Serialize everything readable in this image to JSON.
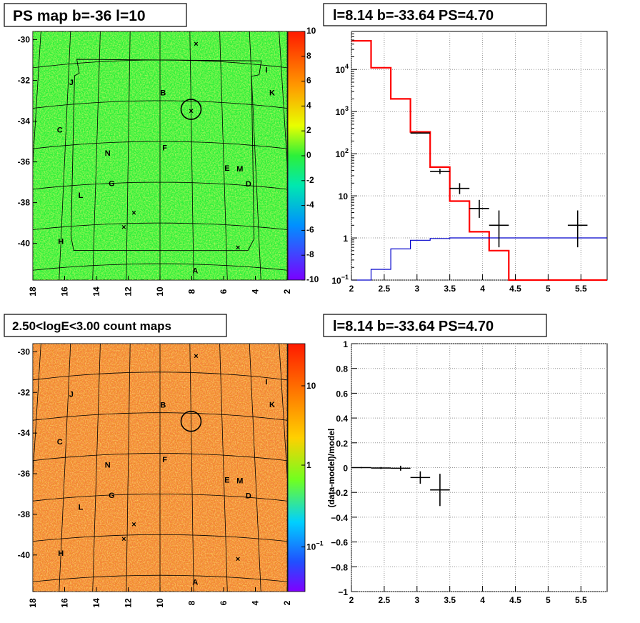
{
  "chart_data": [
    {
      "id": "ps-map",
      "type": "heatmap",
      "title": "PS map b=-36 l=10",
      "x_ticks": [
        "18",
        "16",
        "14",
        "12",
        "10",
        "8",
        "6",
        "4",
        "2"
      ],
      "y_ticks": [
        "-30",
        "-32",
        "-34",
        "-36",
        "-38",
        "-40"
      ],
      "xlim": [
        18,
        2
      ],
      "ylim": [
        -41.8,
        -29.6
      ],
      "colorbar": {
        "min": -10,
        "max": 10,
        "ticks": [
          "10",
          "8",
          "6",
          "4",
          "2",
          "0",
          "-2",
          "-4",
          "-6",
          "-8",
          "-10"
        ]
      },
      "fill_color": "#2cf03a",
      "labels": [
        {
          "text": "J",
          "l": 15.8,
          "b": -31.9
        },
        {
          "text": "I",
          "l": 3.0,
          "b": -31.2
        },
        {
          "text": "K",
          "l": 2.7,
          "b": -32.3
        },
        {
          "text": "B",
          "l": 9.8,
          "b": -32.6
        },
        {
          "text": "C",
          "l": 16.4,
          "b": -34.2
        },
        {
          "text": "F",
          "l": 9.7,
          "b": -35.3
        },
        {
          "text": "N",
          "l": 13.3,
          "b": -35.5
        },
        {
          "text": "E",
          "l": 5.8,
          "b": -36.2
        },
        {
          "text": "M",
          "l": 5.0,
          "b": -36.2
        },
        {
          "text": "D",
          "l": 4.5,
          "b": -36.9
        },
        {
          "text": "G",
          "l": 13.0,
          "b": -37.0
        },
        {
          "text": "L",
          "l": 14.9,
          "b": -37.5
        },
        {
          "text": "H",
          "l": 16.0,
          "b": -39.7
        },
        {
          "text": "A",
          "l": 7.9,
          "b": -41.3
        }
      ],
      "marker_circle": {
        "l": 8.0,
        "b": -33.4
      },
      "crosses": [
        {
          "l": 7.6,
          "b": -30.2
        },
        {
          "l": 11.6,
          "b": -38.5
        },
        {
          "l": 12.2,
          "b": -39.2
        },
        {
          "l": 5.3,
          "b": -40.1
        },
        {
          "l": 8.0,
          "b": -33.5
        }
      ]
    },
    {
      "id": "spectrum",
      "type": "line",
      "title": "l=8.14 b=-33.64 PS=4.70",
      "xlim": [
        2.0,
        5.9
      ],
      "ylog": true,
      "ylim": [
        0.1,
        80000
      ],
      "x_ticks": [
        "2",
        "2.5",
        "3",
        "3.5",
        "4",
        "4.5",
        "5",
        "5.5"
      ],
      "y_ticks": [
        {
          "value": 10000,
          "label": "10",
          "sup": "4"
        },
        {
          "value": 1000,
          "label": "10",
          "sup": "3"
        },
        {
          "value": 100,
          "label": "10",
          "sup": "2"
        },
        {
          "value": 10,
          "label": "10",
          "sup": ""
        },
        {
          "value": 1,
          "label": "1",
          "sup": ""
        },
        {
          "value": 0.1,
          "label": "10",
          "sup": "−1"
        }
      ],
      "grid": true,
      "series": [
        {
          "role": "model-total",
          "color": "#ff0000",
          "edges": [
            2.0,
            2.3,
            2.6,
            2.9,
            3.2,
            3.5,
            3.8,
            4.1,
            4.4,
            4.7,
            5.0,
            5.3,
            5.6,
            5.9
          ],
          "values": [
            48000,
            11000,
            2000,
            330,
            48,
            7.5,
            1.4,
            0.5,
            0.1,
            0.1,
            0.1,
            0.1,
            0.1
          ]
        },
        {
          "role": "model-source",
          "color": "#0000cc",
          "edges": [
            2.0,
            2.3,
            2.6,
            2.9,
            3.2,
            3.5,
            3.8,
            4.1,
            4.4,
            4.7,
            5.0,
            5.3,
            5.6,
            5.9
          ],
          "values": [
            0.1,
            0.18,
            0.55,
            0.88,
            0.97,
            1.0,
            1.0,
            1.0,
            1.0,
            1.0,
            1.0,
            1.0,
            1.0
          ]
        },
        {
          "role": "data",
          "color": "#000000",
          "points": [
            {
              "x": 3.05,
              "y": 310,
              "xerr": 0.15,
              "ylo": 300,
              "yhi": 320
            },
            {
              "x": 3.35,
              "y": 38,
              "xerr": 0.15,
              "ylo": 33,
              "yhi": 44
            },
            {
              "x": 3.65,
              "y": 15,
              "xerr": 0.15,
              "ylo": 11,
              "yhi": 20
            },
            {
              "x": 3.95,
              "y": 5,
              "xerr": 0.15,
              "ylo": 3,
              "yhi": 8
            },
            {
              "x": 4.25,
              "y": 2,
              "xerr": 0.15,
              "ylo": 0.6,
              "yhi": 4.5
            },
            {
              "x": 5.45,
              "y": 2,
              "xerr": 0.15,
              "ylo": 0.6,
              "yhi": 4.5
            }
          ]
        }
      ]
    },
    {
      "id": "count-map",
      "type": "heatmap",
      "title": "2.50<logE<3.00 count maps",
      "x_ticks": [
        "18",
        "16",
        "14",
        "12",
        "10",
        "8",
        "6",
        "4",
        "2"
      ],
      "y_ticks": [
        "-30",
        "-32",
        "-34",
        "-36",
        "-38",
        "-40"
      ],
      "xlim": [
        18,
        2
      ],
      "ylim": [
        -41.8,
        -29.6
      ],
      "colorbar": {
        "log": true,
        "ticks": [
          {
            "label": "10",
            "sup": ""
          },
          {
            "label": "1",
            "sup": ""
          },
          {
            "label": "10",
            "sup": "−1"
          }
        ]
      },
      "fill_color": "#f08a28",
      "labels": [
        {
          "text": "J",
          "l": 15.8,
          "b": -31.9
        },
        {
          "text": "I",
          "l": 3.0,
          "b": -31.2
        },
        {
          "text": "K",
          "l": 2.7,
          "b": -32.3
        },
        {
          "text": "B",
          "l": 9.8,
          "b": -32.6
        },
        {
          "text": "C",
          "l": 16.4,
          "b": -34.2
        },
        {
          "text": "F",
          "l": 9.7,
          "b": -35.3
        },
        {
          "text": "N",
          "l": 13.3,
          "b": -35.5
        },
        {
          "text": "E",
          "l": 5.8,
          "b": -36.2
        },
        {
          "text": "M",
          "l": 5.0,
          "b": -36.2
        },
        {
          "text": "D",
          "l": 4.5,
          "b": -36.9
        },
        {
          "text": "G",
          "l": 13.0,
          "b": -37.0
        },
        {
          "text": "L",
          "l": 14.9,
          "b": -37.5
        },
        {
          "text": "H",
          "l": 16.0,
          "b": -39.7
        },
        {
          "text": "A",
          "l": 7.9,
          "b": -41.3
        }
      ],
      "marker_circle": {
        "l": 8.0,
        "b": -33.4
      },
      "crosses": [
        {
          "l": 7.6,
          "b": -30.2
        },
        {
          "l": 11.6,
          "b": -38.5
        },
        {
          "l": 12.2,
          "b": -39.2
        },
        {
          "l": 5.3,
          "b": -40.1
        }
      ]
    },
    {
      "id": "residual",
      "type": "scatter",
      "title": "l=8.14 b=-33.64 PS=4.70",
      "ylabel": "(data-model)/model",
      "xlim": [
        2.0,
        5.9
      ],
      "ylim": [
        -1,
        1
      ],
      "x_ticks": [
        "2",
        "2.5",
        "3",
        "3.5",
        "4",
        "4.5",
        "5",
        "5.5"
      ],
      "y_ticks": [
        "1",
        "0.8",
        "0.6",
        "0.4",
        "0.2",
        "0",
        "−0.2",
        "−0.4",
        "−0.6",
        "−0.8",
        "−1"
      ],
      "grid": true,
      "points": [
        {
          "x": 2.15,
          "y": 0.0,
          "xerr": 0.15,
          "yerr": 0.005
        },
        {
          "x": 2.45,
          "y": -0.003,
          "xerr": 0.15,
          "yerr": 0.008
        },
        {
          "x": 2.75,
          "y": -0.005,
          "xerr": 0.15,
          "yerr": 0.02
        },
        {
          "x": 3.05,
          "y": -0.08,
          "xerr": 0.15,
          "yerr": 0.05
        },
        {
          "x": 3.35,
          "y": -0.18,
          "xerr": 0.15,
          "yerr": 0.13
        }
      ]
    }
  ]
}
